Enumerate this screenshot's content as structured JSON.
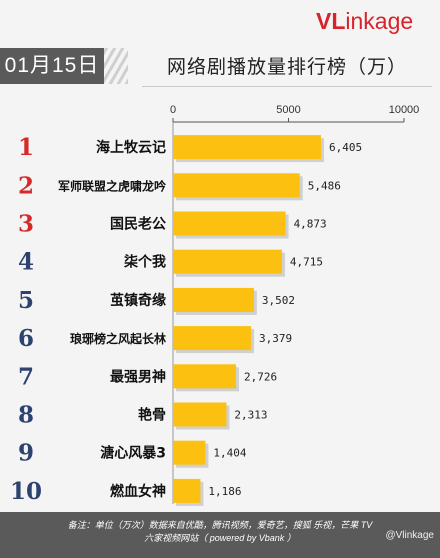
{
  "header": {
    "date": "01月15日",
    "logo_prefix": "VL",
    "logo_rest": "inkage",
    "title": "网络剧播放量排行榜（万）"
  },
  "footer": {
    "line1": "备注：单位（万次）数据来自优酷，腾讯视频，爱奇艺，搜狐 乐视，芒果 TV",
    "line2": "六家视频网站（ powered by Vbank ）",
    "watermark": "@Vlinkage"
  },
  "colors": {
    "bar": "#fcc010",
    "bar_shadow": "#b8b8b8",
    "rank_red": "#d42a2a",
    "rank_blue": "#2e4270",
    "accent": "#d8232a"
  },
  "chart_data": {
    "type": "bar",
    "orientation": "horizontal",
    "title": "网络剧播放量排行榜（万）",
    "xlim": [
      0,
      10000
    ],
    "xticks": [
      "0",
      "5000",
      "10000"
    ],
    "ranks": [
      "1",
      "2",
      "3",
      "4",
      "5",
      "6",
      "7",
      "8",
      "9",
      "10"
    ],
    "categories": [
      "海上牧云记",
      "军师联盟之虎啸龙吟",
      "国民老公",
      "柒个我",
      "茧镇奇缘",
      "琅琊榜之风起长林",
      "最强男神",
      "艳骨",
      "溏心风暴3",
      "燃血女神"
    ],
    "values": [
      6405,
      5486,
      4873,
      4715,
      3502,
      3379,
      2726,
      2313,
      1404,
      1186
    ],
    "value_labels": [
      "6,405",
      "5,486",
      "4,873",
      "4,715",
      "3,502",
      "3,379",
      "2,726",
      "2,313",
      "1,404",
      "1,186"
    ],
    "grid": false
  }
}
